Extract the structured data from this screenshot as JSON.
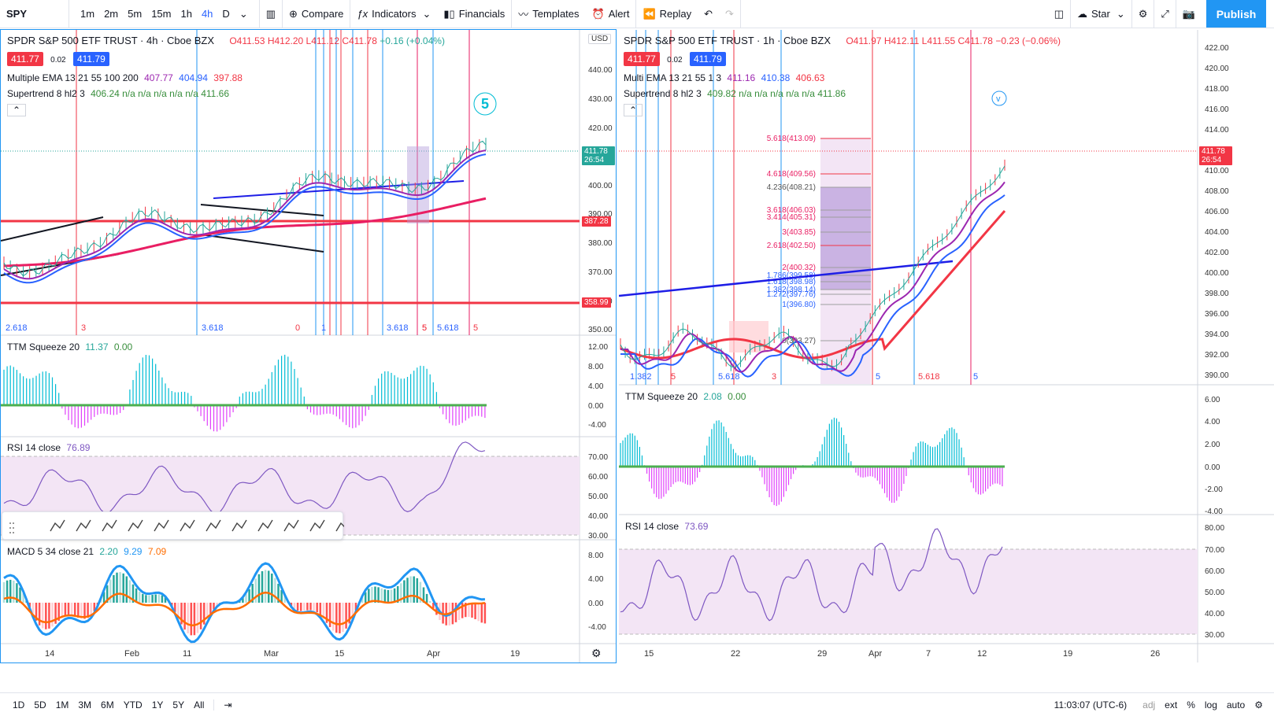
{
  "toolbar": {
    "symbol": "SPY",
    "timeframes": [
      "1m",
      "2m",
      "5m",
      "15m",
      "1h",
      "4h",
      "D"
    ],
    "active_timeframe": "4h",
    "compare": "Compare",
    "indicators": "Indicators",
    "financials": "Financials",
    "templates": "Templates",
    "alert": "Alert",
    "replay": "Replay",
    "layout_name": "Star",
    "publish": "Publish"
  },
  "left_chart": {
    "title": "SPDR S&P 500 ETF TRUST · 4h · Cboe BZX",
    "ohlc": {
      "o": "O411.53",
      "h": "H412.20",
      "l": "L411.12",
      "c": "C411.78",
      "chg": "+0.16 (+0.04%)"
    },
    "bid": "411.77",
    "spread": "0.02",
    "ask": "411.79",
    "ema_label": "Multiple EMA 13 21 55 100 200",
    "ema_values": [
      "407.77",
      "404.94",
      "397.88"
    ],
    "supertrend_label": "Supertrend 8 hl2 3",
    "supertrend_values": "406.24  n/a  n/a  n/a  n/a  n/a  411.66",
    "currency": "USD",
    "price_axis": [
      "440.00",
      "430.00",
      "420.00",
      "400.00",
      "390.00",
      "380.00",
      "370.00",
      "360.00",
      "350.00"
    ],
    "last_price": "411.78",
    "countdown": "26:54",
    "level_a": "387.28",
    "level_b": "358.99",
    "ttm_label": "TTM Squeeze 20",
    "ttm_values": [
      "11.37",
      "0.00"
    ],
    "ttm_axis": [
      "12.00",
      "8.00",
      "4.00",
      "0.00",
      "-4.00"
    ],
    "rsi_label": "RSI 14 close",
    "rsi_value": "76.89",
    "rsi_axis": [
      "70.00",
      "60.00",
      "50.00",
      "40.00",
      "30.00"
    ],
    "macd_label": "MACD 5 34 close 21",
    "macd_values": [
      "2.20",
      "9.29",
      "7.09"
    ],
    "macd_axis": [
      "8.00",
      "4.00",
      "0.00",
      "-4.00"
    ],
    "time_axis": [
      "14",
      "Feb",
      "11",
      "Mar",
      "15",
      "Apr",
      "19"
    ],
    "fib_labels": [
      "2.618",
      "3",
      "3.618",
      "0",
      "1",
      "5",
      "3.618",
      "5",
      "5.618",
      "5"
    ]
  },
  "right_chart": {
    "title": "SPDR S&P 500 ETF TRUST · 1h · Cboe BZX",
    "ohlc": {
      "o": "O411.97",
      "h": "H412.11",
      "l": "L411.55",
      "c": "C411.78",
      "chg": "−0.23 (−0.06%)"
    },
    "bid": "411.77",
    "spread": "0.02",
    "ask": "411.79",
    "ema_label": "Multi EMA 13 21 55 1 3",
    "ema_values": [
      "411.16",
      "410.38",
      "406.63"
    ],
    "supertrend_label": "Supertrend 8 hl2 3",
    "supertrend_values": "409.82  n/a  n/a  n/a  n/a  n/a  411.86",
    "price_axis": [
      "422.00",
      "420.00",
      "418.00",
      "416.00",
      "414.00",
      "410.00",
      "408.00",
      "406.00",
      "404.00",
      "402.00",
      "400.00",
      "398.00",
      "396.00",
      "394.00",
      "392.00",
      "390.00"
    ],
    "last_price": "411.78",
    "countdown": "26:54",
    "fibs": [
      "5.618(413.09)",
      "4.618(409.56)",
      "4.236(408.21)",
      "3.618(406.03)",
      "3.414(405.31)",
      "3(403.85)",
      "2.618(402.50)",
      "2(400.32)",
      "1.786(399.58)",
      "1.618(398.98)",
      "1.382(398.14)",
      "1.272(397.76)",
      "1(396.80)",
      "0(393.27)"
    ],
    "ttm_label": "TTM Squeeze 20",
    "ttm_values": [
      "2.08",
      "0.00"
    ],
    "ttm_axis": [
      "6.00",
      "4.00",
      "2.00",
      "0.00",
      "-2.00",
      "-4.00"
    ],
    "rsi_label": "RSI 14 close",
    "rsi_value": "73.69",
    "rsi_axis": [
      "80.00",
      "70.00",
      "60.00",
      "50.00",
      "40.00",
      "30.00"
    ],
    "time_axis": [
      "15",
      "22",
      "29",
      "Apr",
      "7",
      "12",
      "19",
      "26"
    ],
    "fib_labels": [
      "1.382",
      "5",
      "5.618",
      "3",
      "5",
      "5.618",
      "5"
    ]
  },
  "bottom": {
    "ranges": [
      "1D",
      "5D",
      "1M",
      "3M",
      "6M",
      "YTD",
      "1Y",
      "5Y",
      "All"
    ],
    "clock": "11:03:07 (UTC-6)",
    "options": [
      "adj",
      "ext",
      "%",
      "log",
      "auto"
    ]
  },
  "colors": {
    "accent": "#2962ff",
    "red": "#f23645",
    "green": "#26a69a",
    "purple": "#9c27b0"
  }
}
